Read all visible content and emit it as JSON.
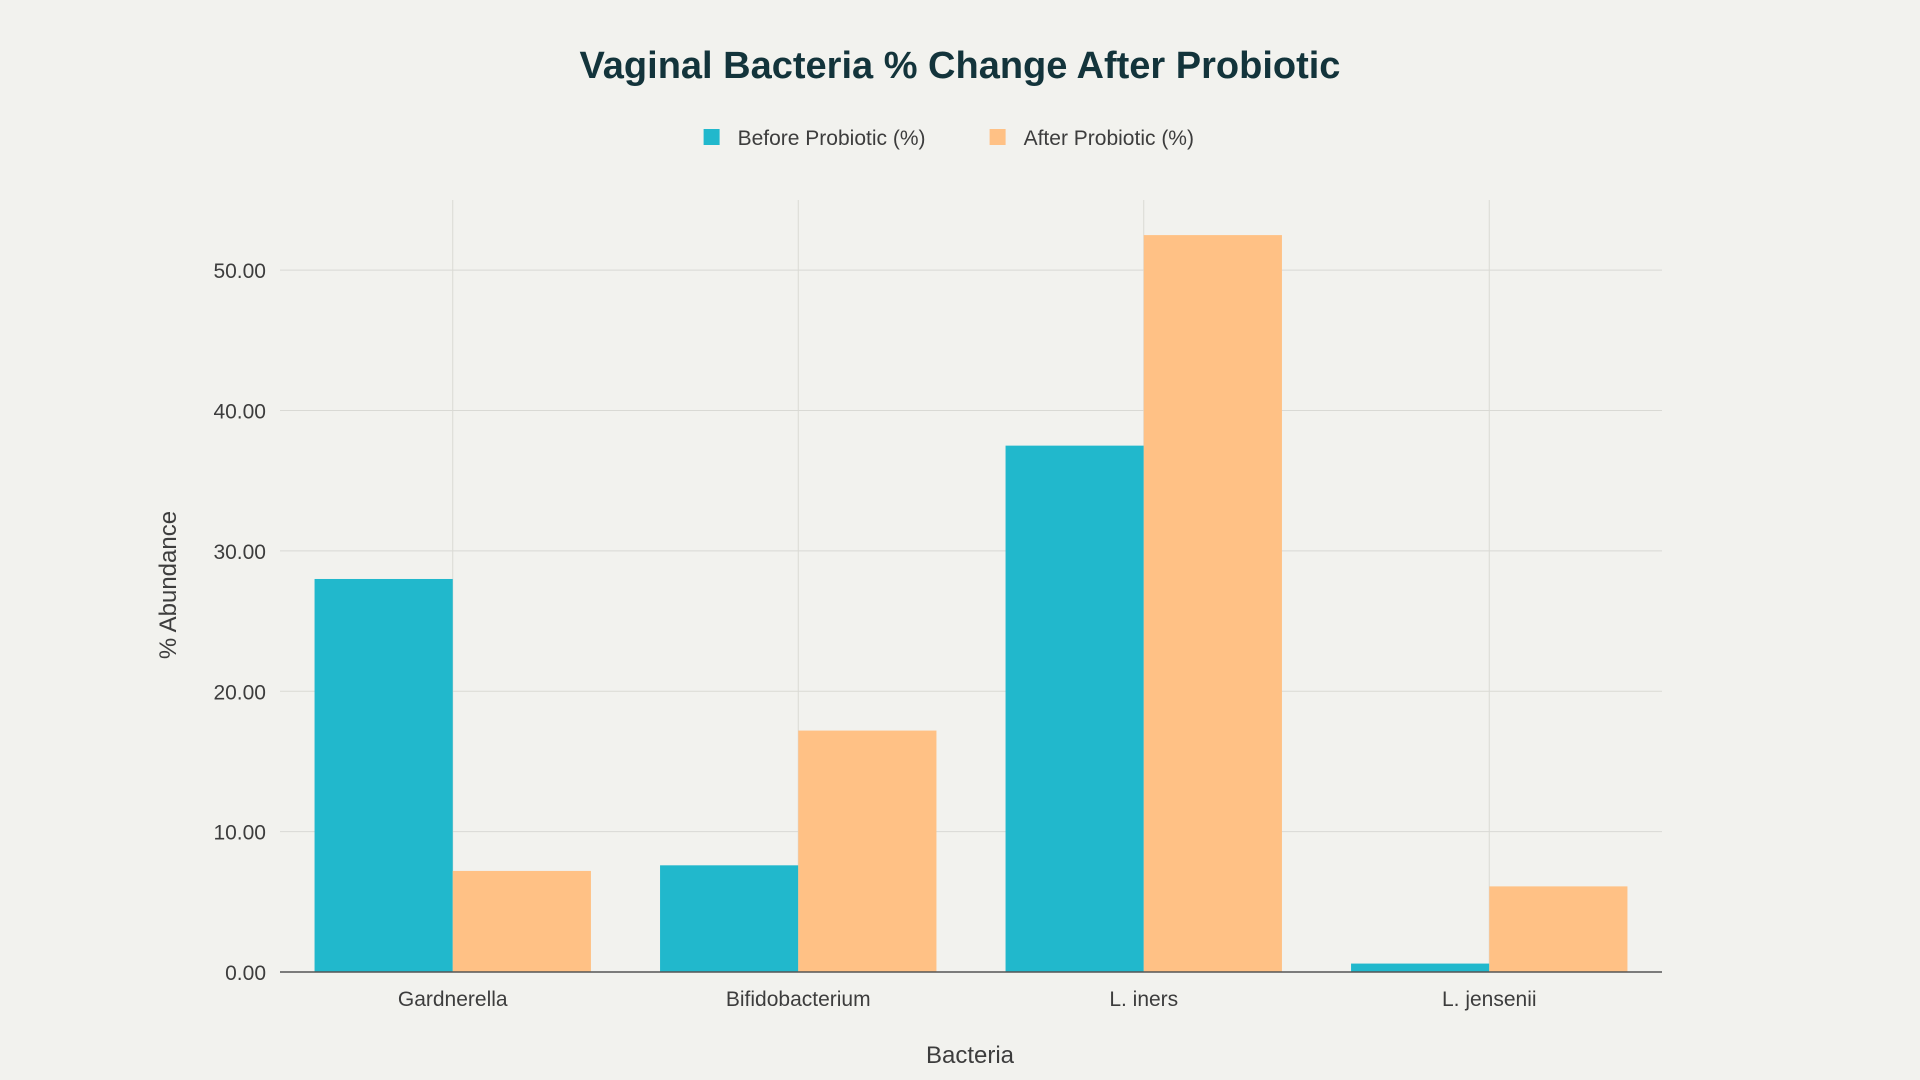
{
  "chart_data": {
    "type": "bar",
    "title": "Vaginal Bacteria % Change After Probiotic",
    "xlabel": "Bacteria",
    "ylabel": "% Abundance",
    "categories": [
      "Gardnerella",
      "Bifidobacterium",
      "L. iners",
      "L. jensenii"
    ],
    "series": [
      {
        "name": "Before Probiotic (%)",
        "color": "#21b8cc",
        "values": [
          28.0,
          7.6,
          37.5,
          0.6
        ]
      },
      {
        "name": "After Probiotic (%)",
        "color": "#ffc185",
        "values": [
          7.2,
          17.2,
          52.5,
          6.1
        ]
      }
    ],
    "ylim": [
      0,
      55
    ],
    "yticks": [
      0,
      10,
      20,
      30,
      40,
      50
    ],
    "ytick_labels": [
      "0.00",
      "10.00",
      "20.00",
      "30.00",
      "40.00",
      "50.00"
    ],
    "grid": true,
    "legend_position": "top-center"
  }
}
